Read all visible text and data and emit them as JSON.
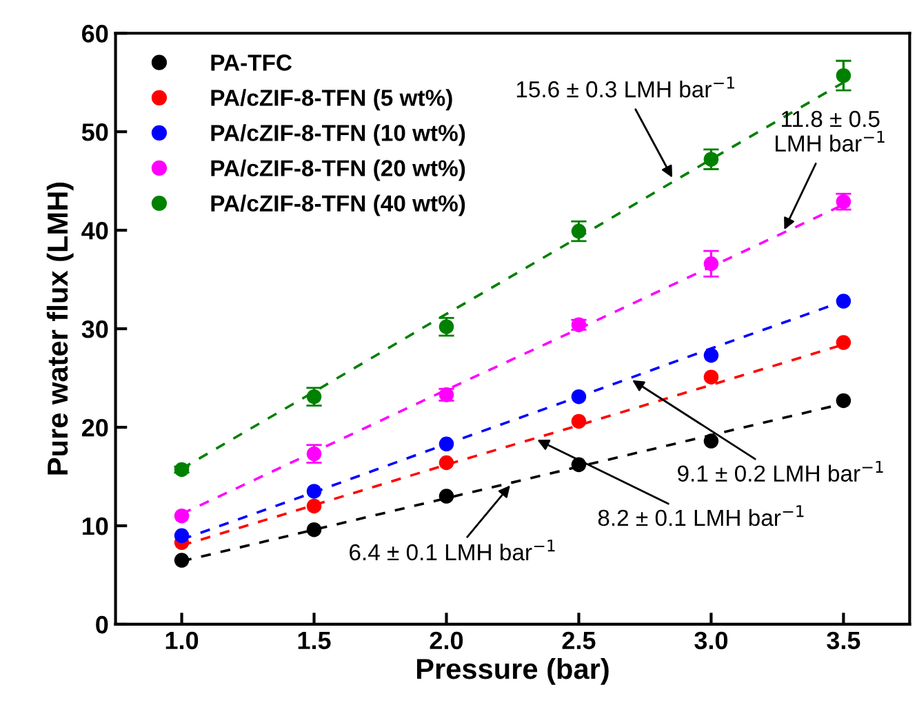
{
  "chart_data": {
    "type": "scatter",
    "xlabel": "Pressure (bar)",
    "ylabel": "Pure water flux (LMH)",
    "xlim": [
      0.75,
      3.75
    ],
    "xticks": [
      {
        "value": 1.0,
        "label": "1.0"
      },
      {
        "value": 1.5,
        "label": "1.5"
      },
      {
        "value": 2.0,
        "label": "2.0"
      },
      {
        "value": 2.5,
        "label": "2.5"
      },
      {
        "value": 3.0,
        "label": "3.0"
      },
      {
        "value": 3.5,
        "label": "3.5"
      }
    ],
    "ylim": [
      0,
      60
    ],
    "yticks": [
      0,
      10,
      20,
      30,
      40,
      50,
      60
    ],
    "x": [
      1.0,
      1.5,
      2.0,
      2.5,
      3.0,
      3.5
    ],
    "marker": "circle",
    "legend": "top left",
    "grid": false,
    "series": [
      {
        "name": "PA-TFC",
        "color": "#000000",
        "values": [
          6.5,
          9.6,
          13.0,
          16.2,
          18.6,
          22.7
        ]
      },
      {
        "name": "PA/cZIF-8-TFN (5 wt%)",
        "color": "#ff0000",
        "values": [
          8.3,
          12.0,
          16.4,
          20.6,
          25.1,
          28.6
        ]
      },
      {
        "name": "PA/cZIF-8-TFN (10 wt%)",
        "color": "#0000ff",
        "values": [
          9.0,
          13.5,
          18.3,
          23.1,
          27.3,
          32.8
        ]
      },
      {
        "name": "PA/cZIF-8-TFN (20 wt%)",
        "color": "#ff00ff",
        "values": [
          11.0,
          17.3,
          23.3,
          30.4,
          36.6,
          42.9
        ],
        "errors": [
          null,
          0.9,
          0.6,
          0.5,
          1.3,
          0.8
        ]
      },
      {
        "name": "PA/cZIF-8-TFN (40 wt%)",
        "color": "#008000",
        "values": [
          15.7,
          23.1,
          30.2,
          39.9,
          47.2,
          55.7
        ],
        "errors": [
          0.3,
          0.9,
          0.9,
          1.0,
          1.0,
          1.5
        ]
      },
      {
        "type": "line",
        "marker": "none",
        "line_style": "dashed",
        "color": "#000000",
        "values": [
          6.4,
          9.6,
          12.8,
          16.0,
          19.2,
          22.4
        ]
      },
      {
        "type": "line",
        "marker": "none",
        "line_style": "dashed",
        "color": "#ff0000",
        "values": [
          8.0,
          12.1,
          16.2,
          20.2,
          24.3,
          28.4
        ]
      },
      {
        "type": "line",
        "marker": "none",
        "line_style": "dashed",
        "color": "#0000ff",
        "values": [
          8.6,
          13.4,
          18.3,
          23.1,
          28.0,
          32.8
        ]
      },
      {
        "type": "line",
        "marker": "none",
        "line_style": "dashed",
        "color": "#ff00ff",
        "values": [
          11.2,
          17.5,
          23.8,
          30.0,
          36.3,
          42.6
        ]
      },
      {
        "type": "line",
        "marker": "none",
        "line_style": "dashed",
        "color": "#008000",
        "values": [
          15.8,
          23.6,
          31.5,
          39.3,
          47.2,
          55.0
        ]
      }
    ],
    "annotations": [
      {
        "text": "15.6 ± 0.3 LMH bar$^{−1}$",
        "x": 2.86,
        "y": 45.0
      },
      {
        "text": "11.8 ± 0.5\nLMH bar$^{−1}$",
        "x": 3.27,
        "y": 39.7
      },
      {
        "text": "9.1 ± 0.2 LMH bar$^{−1}$",
        "x": 2.69,
        "y": 25.0
      },
      {
        "text": "8.2 ± 0.1 LMH bar$^{−1}$",
        "x": 2.33,
        "y": 18.9
      },
      {
        "text": "6.4 ± 0.1 LMH bar$^{−1}$",
        "x": 2.25,
        "y": 14.4
      }
    ]
  }
}
